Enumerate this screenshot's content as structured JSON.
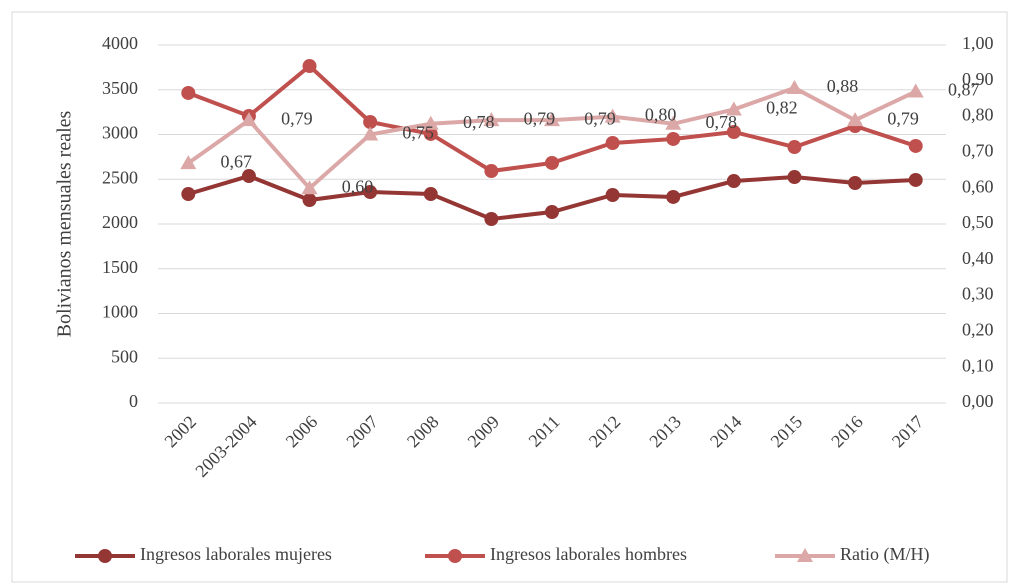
{
  "chart_data": {
    "type": "line",
    "y_label": "Bolivianos mensuales reales",
    "categories": [
      "2002",
      "2003-2004",
      "2006",
      "2007",
      "2008",
      "2009",
      "2011",
      "2012",
      "2013",
      "2014",
      "2015",
      "2016",
      "2017"
    ],
    "series": [
      {
        "name": "Ingresos laborales mujeres",
        "color": "#943634",
        "marker": "circle",
        "axis": "y",
        "values": [
          2335,
          2536,
          2268,
          2357,
          2335,
          2056,
          2134,
          2324,
          2302,
          2480,
          2525,
          2458,
          2492
        ]
      },
      {
        "name": "Ingresos laborales hombres",
        "color": "#c0504d",
        "marker": "circle",
        "axis": "y",
        "values": [
          3464,
          3207,
          3765,
          3140,
          3006,
          2592,
          2682,
          2905,
          2950,
          3028,
          2860,
          3095,
          2872
        ]
      },
      {
        "name": "Ratio (M/H)",
        "color": "#dba8a7",
        "marker": "triangle",
        "axis": "y2",
        "values": [
          0.67,
          0.79,
          0.6,
          0.75,
          0.78,
          0.79,
          0.79,
          0.8,
          0.78,
          0.82,
          0.88,
          0.79,
          0.87
        ],
        "value_labels": [
          "0,67",
          "0,79",
          "0,60",
          "0,75",
          "0,78",
          "0,79",
          "0,79",
          "0,80",
          "0,78",
          "0,82",
          "0,88",
          "0,79",
          "0,87"
        ]
      }
    ],
    "ylim": [
      0,
      4000
    ],
    "yticks": [
      0,
      500,
      1000,
      1500,
      2000,
      2500,
      3000,
      3500,
      4000
    ],
    "y2lim": [
      0,
      1
    ],
    "y2ticks": [
      {
        "value": 0,
        "label": "0,00"
      },
      {
        "value": 0.1,
        "label": "0,10"
      },
      {
        "value": 0.2,
        "label": "0,20"
      },
      {
        "value": 0.3,
        "label": "0,30"
      },
      {
        "value": 0.4,
        "label": "0,40"
      },
      {
        "value": 0.5,
        "label": "0,50"
      },
      {
        "value": 0.6,
        "label": "0,60"
      },
      {
        "value": 0.7,
        "label": "0,70"
      },
      {
        "value": 0.8,
        "label": "0,80"
      },
      {
        "value": 0.9,
        "label": "0,90"
      },
      {
        "value": 1,
        "label": "1,00"
      }
    ],
    "grid": true,
    "legend": "bottom"
  }
}
